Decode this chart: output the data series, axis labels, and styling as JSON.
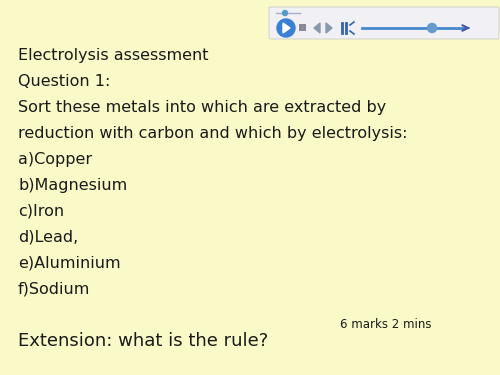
{
  "background_color": "#FAFAC8",
  "text_color": "#1a1a1a",
  "title_line": "Electrolysis assessment",
  "question_line": "Question 1:",
  "instruction_line1": "Sort these metals into which are extracted by",
  "instruction_line2": "reduction with carbon and which by electrolysis:",
  "items": [
    "a)Copper",
    "b)Magnesium",
    "c)Iron",
    "d)Lead,",
    "e)Aluminium",
    "f)Sodium"
  ],
  "extension_line": "Extension: what is the rule?",
  "marks_text": "6 marks 2 mins",
  "main_font_size": 11.5,
  "extension_font_size": 13.0,
  "marks_font_size": 8.5
}
